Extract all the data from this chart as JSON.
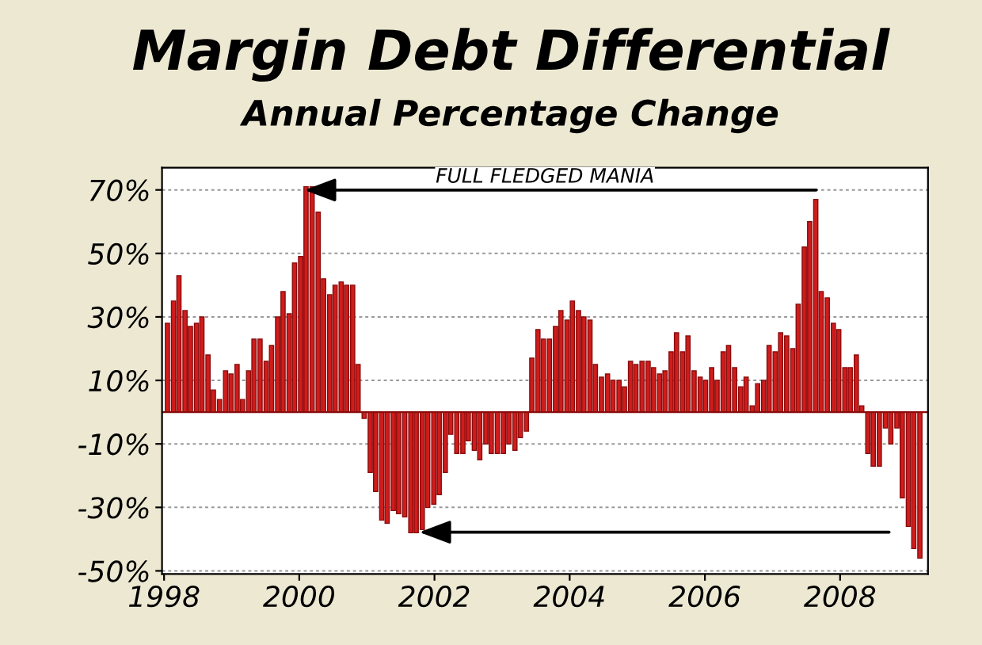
{
  "chart_data": {
    "type": "bar",
    "title": "Margin Debt Differential",
    "subtitle": "Annual Percentage Change",
    "annotations": [
      "FULL FLEDGED MANIA"
    ],
    "ref_lines": [
      {
        "axis": "y",
        "value": 0,
        "color": "#8a0c0c"
      }
    ],
    "color": "#d01c1c",
    "x": [
      1998.05,
      1998.14,
      1998.22,
      1998.31,
      1998.39,
      1998.48,
      1998.56,
      1998.65,
      1998.73,
      1998.82,
      1998.91,
      1998.99,
      1999.08,
      1999.16,
      1999.25,
      1999.33,
      1999.42,
      1999.51,
      1999.59,
      1999.68,
      1999.76,
      1999.85,
      1999.93,
      2000.02,
      2000.1,
      2000.19,
      2000.28,
      2000.36,
      2000.45,
      2000.53,
      2000.62,
      2000.7,
      2000.79,
      2000.87,
      2000.96,
      2001.05,
      2001.13,
      2001.22,
      2001.3,
      2001.39,
      2001.47,
      2001.56,
      2001.65,
      2001.73,
      2001.82,
      2001.9,
      2001.99,
      2002.07,
      2002.16,
      2002.24,
      2002.33,
      2002.42,
      2002.5,
      2002.59,
      2002.67,
      2002.76,
      2002.84,
      2002.93,
      2003.02,
      2003.1,
      2003.19,
      2003.27,
      2003.36,
      2003.44,
      2003.53,
      2003.61,
      2003.7,
      2003.79,
      2003.87,
      2003.96,
      2004.04,
      2004.13,
      2004.21,
      2004.3,
      2004.38,
      2004.47,
      2004.56,
      2004.64,
      2004.73,
      2004.81,
      2004.9,
      2004.98,
      2005.07,
      2005.16,
      2005.24,
      2005.33,
      2005.41,
      2005.5,
      2005.58,
      2005.67,
      2005.75,
      2005.84,
      2005.93,
      2006.01,
      2006.1,
      2006.18,
      2006.27,
      2006.35,
      2006.44,
      2006.53,
      2006.61,
      2006.7,
      2006.78,
      2006.87,
      2006.95,
      2007.04,
      2007.12,
      2007.21,
      2007.3,
      2007.38,
      2007.47,
      2007.55,
      2007.64,
      2007.72,
      2007.81,
      2007.9,
      2007.98,
      2008.07,
      2008.15,
      2008.24,
      2008.32,
      2008.41,
      2008.49,
      2008.58,
      2008.67,
      2008.75,
      2008.84,
      2008.92,
      2009.01,
      2009.09,
      2009.18
    ],
    "values": [
      28,
      35,
      43,
      32,
      27,
      28,
      30,
      18,
      7,
      4,
      13,
      12,
      15,
      4,
      13,
      23,
      23,
      16,
      21,
      30,
      38,
      31,
      47,
      49,
      71,
      71,
      63,
      42,
      37,
      40,
      41,
      40,
      40,
      15,
      -2,
      -19,
      -25,
      -34,
      -35,
      -31,
      -32,
      -33,
      -38,
      -38,
      -37,
      -30,
      -29,
      -26,
      -19,
      -7,
      -13,
      -13,
      -9,
      -12,
      -15,
      -10,
      -13,
      -13,
      -13,
      -10,
      -12,
      -8,
      -6,
      17,
      26,
      23,
      23,
      27,
      32,
      29,
      35,
      32,
      30,
      29,
      15,
      11,
      12,
      10,
      10,
      8,
      16,
      15,
      16,
      16,
      14,
      12,
      13,
      19,
      25,
      19,
      24,
      13,
      11,
      10,
      14,
      10,
      19,
      21,
      14,
      8,
      11,
      2,
      9,
      10,
      21,
      19,
      25,
      24,
      20,
      34,
      52,
      60,
      67,
      38,
      36,
      28,
      26,
      14,
      14,
      18,
      2,
      -13,
      -17,
      -17,
      -5,
      -10,
      -5,
      -27,
      -36,
      -43,
      -46
    ],
    "xlim": [
      1997.97,
      2009.3
    ],
    "xticks": [
      1998,
      2000,
      2002,
      2004,
      2006,
      2008
    ],
    "ylim": [
      -51,
      77
    ],
    "yticks": [
      {
        "value": 70,
        "label": "70%"
      },
      {
        "value": 50,
        "label": "50%"
      },
      {
        "value": 30,
        "label": "30%"
      },
      {
        "value": 10,
        "label": "10%"
      },
      {
        "value": -10,
        "label": "-10%"
      },
      {
        "value": -30,
        "label": "-30%"
      },
      {
        "value": -50,
        "label": "-50%"
      }
    ],
    "grid": "y"
  }
}
